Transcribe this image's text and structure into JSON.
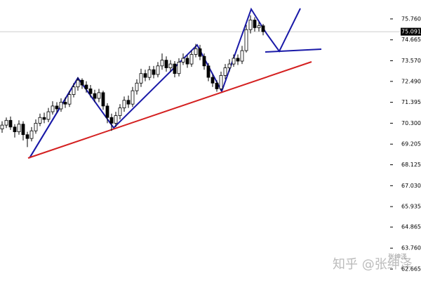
{
  "chart_data": {
    "type": "candlestick",
    "open": [
      70.0,
      70.2,
      70.45,
      70.1,
      69.85,
      70.25,
      69.7,
      69.5,
      69.9,
      70.3,
      70.6,
      70.5,
      70.9,
      71.2,
      71.05,
      71.4,
      71.3,
      71.8,
      72.2,
      72.55,
      72.3,
      72.1,
      71.85,
      71.6,
      71.9,
      71.2,
      70.6,
      70.3,
      70.7,
      71.1,
      71.5,
      71.3,
      72.0,
      72.4,
      72.9,
      72.7,
      73.1,
      72.85,
      73.3,
      73.6,
      73.2,
      73.4,
      72.9,
      73.5,
      73.7,
      73.4,
      73.9,
      74.2,
      73.8,
      73.3,
      72.7,
      72.4,
      72.1,
      72.8,
      73.2,
      73.4,
      73.7,
      73.55,
      74.1,
      75.2,
      75.7,
      75.3,
      75.4
    ],
    "high": [
      70.4,
      70.6,
      70.65,
      70.25,
      70.45,
      70.4,
      69.85,
      70.1,
      70.5,
      70.8,
      70.85,
      71.1,
      71.45,
      71.4,
      71.6,
      71.65,
      72.0,
      72.4,
      72.7,
      72.65,
      72.5,
      72.3,
      72.05,
      72.1,
      72.0,
      71.35,
      70.8,
      70.9,
      71.3,
      71.7,
      71.75,
      72.2,
      72.6,
      73.15,
      73.1,
      73.3,
      73.3,
      73.5,
      73.95,
      73.8,
      73.6,
      73.55,
      73.7,
      73.95,
      73.85,
      74.1,
      74.45,
      74.4,
      73.95,
      73.45,
      72.85,
      72.55,
      73.0,
      73.4,
      73.65,
      73.9,
      73.9,
      74.35,
      75.45,
      75.95,
      75.85,
      75.6,
      75.5
    ],
    "low": [
      69.8,
      70.05,
      69.95,
      69.55,
      69.7,
      69.4,
      69.05,
      69.35,
      69.75,
      70.15,
      70.3,
      70.35,
      70.75,
      70.85,
      70.9,
      71.1,
      71.15,
      71.65,
      72.0,
      72.1,
      71.9,
      71.65,
      71.4,
      71.4,
      71.0,
      70.3,
      69.9,
      70.1,
      70.5,
      70.9,
      71.1,
      71.15,
      71.8,
      72.2,
      72.5,
      72.55,
      72.65,
      72.7,
      73.1,
      73.0,
      73.0,
      72.7,
      72.75,
      73.35,
      73.2,
      73.25,
      73.75,
      73.6,
      73.1,
      72.5,
      72.2,
      71.95,
      72.0,
      72.6,
      73.0,
      73.25,
      73.35,
      73.4,
      74.0,
      75.0,
      75.1,
      75.1,
      74.9
    ],
    "close": [
      70.2,
      70.45,
      70.1,
      69.85,
      70.25,
      69.7,
      69.5,
      69.9,
      70.3,
      70.6,
      70.5,
      70.9,
      71.2,
      71.05,
      71.4,
      71.3,
      71.8,
      72.2,
      72.55,
      72.3,
      72.1,
      71.85,
      71.6,
      71.9,
      71.2,
      70.6,
      70.3,
      70.7,
      71.1,
      71.5,
      71.3,
      72.0,
      72.4,
      72.9,
      72.7,
      73.1,
      72.85,
      73.3,
      73.6,
      73.2,
      73.4,
      72.9,
      73.5,
      73.7,
      73.4,
      73.9,
      74.2,
      73.8,
      73.3,
      72.7,
      72.4,
      72.1,
      72.8,
      73.2,
      73.4,
      73.7,
      73.55,
      74.1,
      75.2,
      75.7,
      75.3,
      75.4,
      75.09
    ],
    "up_color": "#ffffff",
    "down_color": "#000000",
    "ylim": [
      62.04,
      76.75
    ],
    "yticks": [
      {
        "value": 75.76,
        "label": "75.760"
      },
      {
        "value": 74.665,
        "label": "74.665"
      },
      {
        "value": 73.57,
        "label": "73.570"
      },
      {
        "value": 72.49,
        "label": "72.490"
      },
      {
        "value": 71.395,
        "label": "71.395"
      },
      {
        "value": 70.3,
        "label": "70.300"
      },
      {
        "value": 69.205,
        "label": "69.205"
      },
      {
        "value": 68.125,
        "label": "68.125"
      },
      {
        "value": 67.03,
        "label": "67.030"
      },
      {
        "value": 65.935,
        "label": "65.935"
      },
      {
        "value": 64.865,
        "label": "64.865"
      },
      {
        "value": 63.76,
        "label": "63.760"
      },
      {
        "value": 62.665,
        "label": "62.665"
      }
    ],
    "last_price": {
      "value": 75.091,
      "label": "75.091"
    },
    "watermark": "知乎 @张绅泽",
    "watermark_logo": "张绅泽"
  }
}
